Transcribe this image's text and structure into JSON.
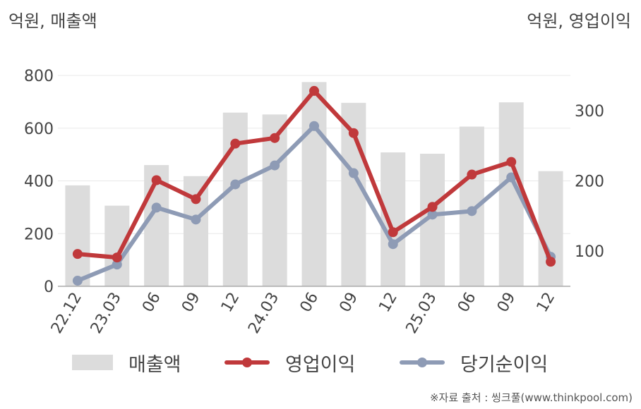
{
  "unit_left": "억원, 매출액",
  "unit_right": "억원, 영업이익",
  "source": "※자료 출처 : 씽크풀(www.thinkpool.com)",
  "legend": {
    "bar": "매출액",
    "line1": "영업이익",
    "line2": "당기순이익"
  },
  "colors": {
    "bar": "#dcdcdc",
    "line1": "#c0393b",
    "line2": "#8e9bb5",
    "grid": "#e8e8e8",
    "axis": "#aaaaaa"
  },
  "chart_data": {
    "type": "bar",
    "categories": [
      "22.12",
      "23.03",
      "06",
      "09",
      "12",
      "24.03",
      "06",
      "09",
      "12",
      "25.03",
      "06",
      "09",
      "12"
    ],
    "left_axis": {
      "ylim": [
        0,
        800
      ],
      "ticks": [
        0,
        200,
        400,
        600,
        800
      ]
    },
    "right_axis": {
      "ylim": [
        50,
        350
      ],
      "ticks": [
        100,
        200,
        300
      ]
    },
    "series": [
      {
        "name": "매출액",
        "axis": "left",
        "kind": "bar",
        "values": [
          383,
          306,
          460,
          418,
          659,
          652,
          775,
          696,
          508,
          503,
          606,
          698,
          437
        ]
      },
      {
        "name": "영업이익",
        "axis": "right",
        "kind": "line",
        "values": [
          96,
          91,
          201,
          174,
          253,
          261,
          328,
          268,
          127,
          163,
          209,
          227,
          85
        ]
      },
      {
        "name": "당기순이익",
        "axis": "right",
        "kind": "line",
        "values": [
          58,
          81,
          162,
          145,
          195,
          222,
          278,
          211,
          110,
          152,
          157,
          205,
          92
        ]
      }
    ]
  }
}
